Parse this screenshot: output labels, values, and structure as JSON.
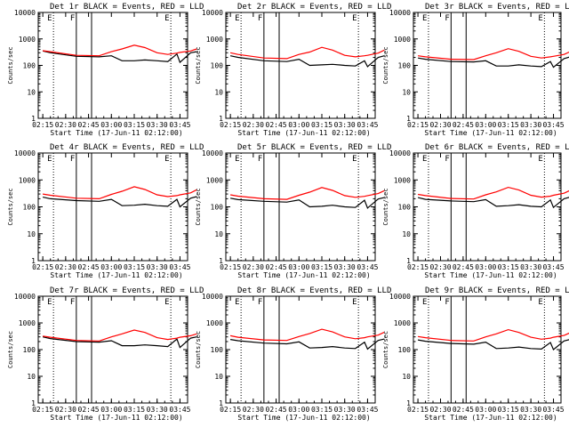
{
  "figure": {
    "x_axis_label": "Start Time (17-Jun-11 02:12:00)",
    "y_axis_label": "Counts/sec",
    "x_tick_labels": [
      "02:15",
      "02:30",
      "02:45",
      "03:00",
      "03:15",
      "03:30",
      "03:45"
    ],
    "y_tick_labels": [
      "1",
      "10",
      "100",
      "1000",
      "10000"
    ],
    "marker_labels": [
      "E",
      "F",
      "E"
    ],
    "colors": {
      "events": "#000000",
      "lld": "#ff0000",
      "background": "#ffffff"
    }
  },
  "chart_data": [
    {
      "type": "line",
      "title": "Det 1r BLACK = Events, RED = LLD",
      "x_minutes_after_start": [
        3,
        8,
        25,
        40,
        48,
        55,
        63,
        70,
        78,
        85,
        91,
        93,
        100,
        104
      ],
      "series": [
        {
          "name": "Events",
          "color": "#000000",
          "y": [
            350,
            300,
            220,
            210,
            230,
            150,
            150,
            160,
            150,
            140,
            270,
            130,
            300,
            330
          ]
        },
        {
          "name": "LLD",
          "color": "#ff0000",
          "y": [
            360,
            330,
            240,
            230,
            330,
            420,
            580,
            470,
            300,
            260,
            290,
            310,
            350,
            420
          ]
        }
      ],
      "xlim": [
        "02:12",
        "03:50"
      ],
      "ylim": [
        1,
        10000
      ],
      "yscale": "log",
      "vertical_lines": {
        "dotted": [
          "02:22",
          "03:39"
        ],
        "solid": [
          "02:37",
          "02:47"
        ]
      },
      "legend": "none"
    },
    {
      "type": "line",
      "title": "Det 2r BLACK = Events, RED = LLD",
      "x_minutes_after_start": [
        3,
        8,
        25,
        40,
        48,
        55,
        63,
        70,
        78,
        85,
        91,
        93,
        100,
        104
      ],
      "series": [
        {
          "name": "Events",
          "color": "#000000",
          "y": [
            230,
            200,
            150,
            140,
            170,
            100,
            105,
            110,
            100,
            95,
            150,
            90,
            200,
            230
          ]
        },
        {
          "name": "LLD",
          "color": "#ff0000",
          "y": [
            300,
            260,
            190,
            180,
            260,
            320,
            480,
            380,
            240,
            210,
            230,
            240,
            290,
            380
          ]
        }
      ],
      "xlim": [
        "02:12",
        "03:50"
      ],
      "ylim": [
        1,
        10000
      ],
      "yscale": "log",
      "vertical_lines": {
        "dotted": [
          "02:22",
          "03:39"
        ],
        "solid": [
          "02:37",
          "02:47"
        ]
      },
      "legend": "none"
    },
    {
      "type": "line",
      "title": "Det 3r BLACK = Events, RED = LLD",
      "x_minutes_after_start": [
        3,
        8,
        25,
        40,
        48,
        55,
        63,
        70,
        78,
        85,
        91,
        93,
        100,
        104
      ],
      "series": [
        {
          "name": "Events",
          "color": "#000000",
          "y": [
            190,
            170,
            140,
            135,
            150,
            95,
            95,
            105,
            95,
            90,
            140,
            85,
            180,
            210
          ]
        },
        {
          "name": "LLD",
          "color": "#ff0000",
          "y": [
            230,
            210,
            170,
            165,
            230,
            300,
            430,
            340,
            220,
            190,
            210,
            220,
            260,
            330
          ]
        }
      ],
      "xlim": [
        "02:12",
        "03:50"
      ],
      "ylim": [
        1,
        10000
      ],
      "yscale": "log",
      "vertical_lines": {
        "dotted": [
          "02:22",
          "03:39"
        ],
        "solid": [
          "02:37",
          "02:47"
        ]
      },
      "legend": "none"
    },
    {
      "type": "line",
      "title": "Det 4r BLACK = Events, RED = LLD",
      "x_minutes_after_start": [
        3,
        8,
        25,
        40,
        48,
        55,
        63,
        70,
        78,
        85,
        91,
        93,
        100,
        104
      ],
      "series": [
        {
          "name": "Events",
          "color": "#000000",
          "y": [
            230,
            200,
            170,
            160,
            190,
            110,
            115,
            125,
            110,
            105,
            190,
            100,
            210,
            240
          ]
        },
        {
          "name": "LLD",
          "color": "#ff0000",
          "y": [
            300,
            270,
            210,
            200,
            290,
            380,
            560,
            440,
            280,
            240,
            260,
            280,
            330,
            430
          ]
        }
      ],
      "xlim": [
        "02:12",
        "03:50"
      ],
      "ylim": [
        1,
        10000
      ],
      "yscale": "log",
      "vertical_lines": {
        "dotted": [
          "02:22",
          "03:39"
        ],
        "solid": [
          "02:37",
          "02:47"
        ]
      },
      "legend": "none"
    },
    {
      "type": "line",
      "title": "Det 5r BLACK = Events, RED = LLD",
      "x_minutes_after_start": [
        3,
        8,
        25,
        40,
        48,
        55,
        63,
        70,
        78,
        85,
        91,
        93,
        100,
        104
      ],
      "series": [
        {
          "name": "Events",
          "color": "#000000",
          "y": [
            210,
            185,
            160,
            150,
            180,
            100,
            105,
            115,
            100,
            95,
            175,
            90,
            195,
            220
          ]
        },
        {
          "name": "LLD",
          "color": "#ff0000",
          "y": [
            280,
            250,
            200,
            190,
            270,
            350,
            520,
            410,
            260,
            225,
            245,
            260,
            310,
            400
          ]
        }
      ],
      "xlim": [
        "02:12",
        "03:50"
      ],
      "ylim": [
        1,
        10000
      ],
      "yscale": "log",
      "vertical_lines": {
        "dotted": [
          "02:22",
          "03:39"
        ],
        "solid": [
          "02:37",
          "02:47"
        ]
      },
      "legend": "none"
    },
    {
      "type": "line",
      "title": "Det 6r BLACK = Events, RED = LLD",
      "x_minutes_after_start": [
        3,
        8,
        25,
        40,
        48,
        55,
        63,
        70,
        78,
        85,
        91,
        93,
        100,
        104
      ],
      "series": [
        {
          "name": "Events",
          "color": "#000000",
          "y": [
            220,
            190,
            165,
            155,
            185,
            105,
            110,
            120,
            105,
            100,
            180,
            95,
            200,
            230
          ]
        },
        {
          "name": "LLD",
          "color": "#ff0000",
          "y": [
            290,
            260,
            205,
            195,
            280,
            360,
            530,
            420,
            270,
            230,
            250,
            270,
            320,
            410
          ]
        }
      ],
      "xlim": [
        "02:12",
        "03:50"
      ],
      "ylim": [
        1,
        10000
      ],
      "yscale": "log",
      "vertical_lines": {
        "dotted": [
          "02:22",
          "03:39"
        ],
        "solid": [
          "02:37",
          "02:47"
        ]
      },
      "legend": "none"
    },
    {
      "type": "line",
      "title": "Det 7r BLACK = Events, RED = LLD",
      "x_minutes_after_start": [
        3,
        8,
        25,
        40,
        48,
        55,
        63,
        70,
        78,
        85,
        91,
        93,
        100,
        104
      ],
      "series": [
        {
          "name": "Events",
          "color": "#000000",
          "y": [
            300,
            260,
            200,
            190,
            215,
            140,
            140,
            150,
            140,
            130,
            250,
            120,
            270,
            300
          ]
        },
        {
          "name": "LLD",
          "color": "#ff0000",
          "y": [
            320,
            290,
            220,
            210,
            300,
            390,
            540,
            440,
            280,
            240,
            270,
            290,
            330,
            390
          ]
        }
      ],
      "xlim": [
        "02:12",
        "03:50"
      ],
      "ylim": [
        1,
        10000
      ],
      "yscale": "log",
      "vertical_lines": {
        "dotted": [
          "02:22",
          "03:39"
        ],
        "solid": [
          "02:37",
          "02:47"
        ]
      },
      "legend": "none"
    },
    {
      "type": "line",
      "title": "Det 8r BLACK = Events, RED = LLD",
      "x_minutes_after_start": [
        3,
        8,
        25,
        40,
        48,
        55,
        63,
        70,
        78,
        85,
        91,
        93,
        100,
        104
      ],
      "series": [
        {
          "name": "Events",
          "color": "#000000",
          "y": [
            240,
            215,
            175,
            165,
            195,
            115,
            120,
            130,
            115,
            110,
            190,
            105,
            220,
            250
          ]
        },
        {
          "name": "LLD",
          "color": "#ff0000",
          "y": [
            330,
            290,
            230,
            220,
            310,
            400,
            580,
            460,
            300,
            255,
            280,
            300,
            350,
            450
          ]
        }
      ],
      "xlim": [
        "02:12",
        "03:50"
      ],
      "ylim": [
        1,
        10000
      ],
      "yscale": "log",
      "vertical_lines": {
        "dotted": [
          "02:22",
          "03:39"
        ],
        "solid": [
          "02:37",
          "02:47"
        ]
      },
      "legend": "none"
    },
    {
      "type": "line",
      "title": "Det 9r BLACK = Events, RED = LLD",
      "x_minutes_after_start": [
        3,
        8,
        25,
        40,
        48,
        55,
        63,
        70,
        78,
        85,
        91,
        93,
        100,
        104
      ],
      "series": [
        {
          "name": "Events",
          "color": "#000000",
          "y": [
            230,
            205,
            170,
            160,
            190,
            110,
            115,
            125,
            110,
            105,
            185,
            100,
            210,
            240
          ]
        },
        {
          "name": "LLD",
          "color": "#ff0000",
          "y": [
            310,
            280,
            220,
            210,
            300,
            390,
            560,
            440,
            290,
            245,
            270,
            290,
            340,
            430
          ]
        }
      ],
      "xlim": [
        "02:12",
        "03:50"
      ],
      "ylim": [
        1,
        10000
      ],
      "yscale": "log",
      "vertical_lines": {
        "dotted": [
          "02:22",
          "03:39"
        ],
        "solid": [
          "02:37",
          "02:47"
        ]
      },
      "legend": "none"
    }
  ]
}
